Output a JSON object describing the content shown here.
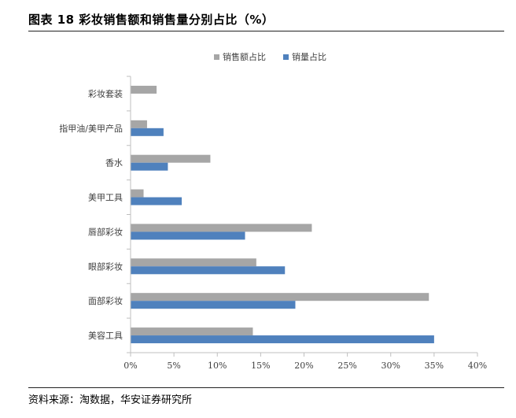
{
  "header": {
    "title": "图表 18 彩妆销售额和销售量分别占比（%）"
  },
  "footer": {
    "source": "资料来源：淘数据，华安证券研究所"
  },
  "colors": {
    "sales_amount": "#a6a6a6",
    "sales_volume": "#4f81bd",
    "axis": "#bfbfbf",
    "text": "#404040"
  },
  "chart_data": {
    "type": "bar",
    "orientation": "horizontal",
    "categories": [
      "彩妆套装",
      "指甲油/美甲产品",
      "香水",
      "美甲工具",
      "唇部彩妆",
      "眼部彩妆",
      "面部彩妆",
      "美容工具"
    ],
    "series": [
      {
        "name": "销售额占比",
        "values": [
          3.0,
          1.9,
          9.2,
          1.5,
          20.9,
          14.5,
          34.4,
          14.1
        ]
      },
      {
        "name": "销量占比",
        "values": [
          0,
          3.8,
          4.3,
          5.9,
          13.2,
          17.8,
          19.0,
          35.0
        ]
      }
    ],
    "xlim": [
      0,
      40
    ],
    "xticks": [
      "0%",
      "5%",
      "10%",
      "15%",
      "20%",
      "25%",
      "30%",
      "35%",
      "40%"
    ],
    "xticks_values": [
      0,
      5,
      10,
      15,
      20,
      25,
      30,
      35,
      40
    ],
    "legend_position": "top",
    "grid": false
  }
}
